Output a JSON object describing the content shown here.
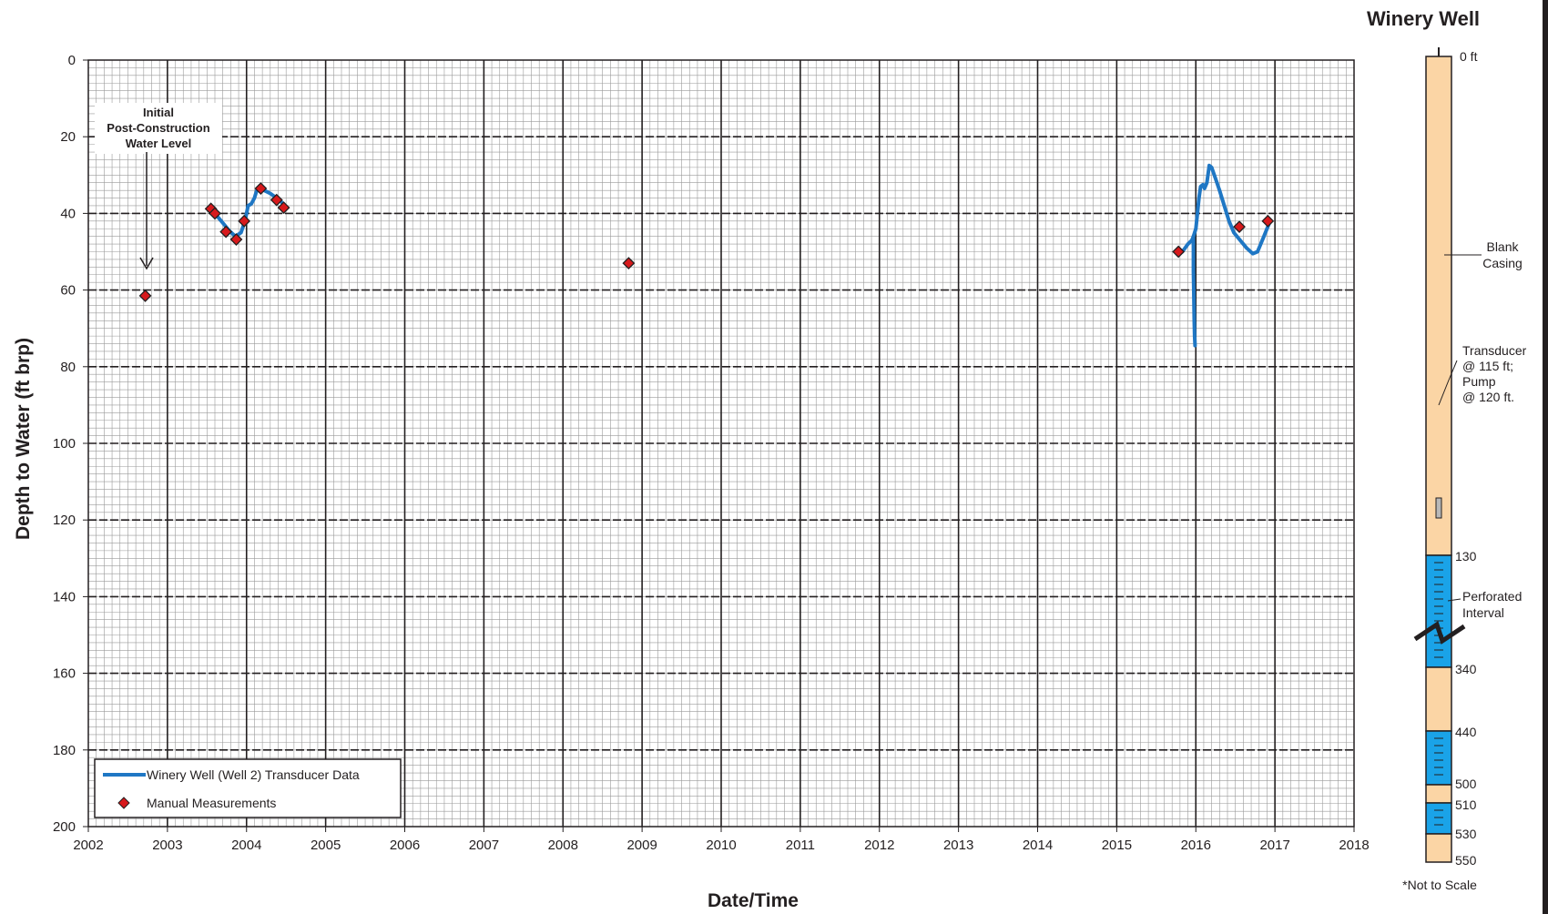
{
  "chart_data": {
    "type": "line",
    "xlabel": "Date/Time",
    "ylabel": "Depth to Water (ft brp)",
    "xlim": [
      2002,
      2018
    ],
    "ylim": [
      0,
      200
    ],
    "y_inverted": true,
    "x_ticks": [
      "2002",
      "2003",
      "2004",
      "2005",
      "2006",
      "2007",
      "2008",
      "2009",
      "2010",
      "2011",
      "2012",
      "2013",
      "2014",
      "2015",
      "2016",
      "2017",
      "2018"
    ],
    "y_ticks": [
      "0",
      "20",
      "40",
      "60",
      "80",
      "100",
      "120",
      "140",
      "160",
      "180",
      "200"
    ],
    "grid": true,
    "legend_position": "bottom-left",
    "series": [
      {
        "name": "Winery Well (Well 2)  Transducer Data",
        "color": "#1f77c4",
        "segments": [
          [
            [
              2003.62,
              40.5
            ],
            [
              2003.7,
              42.5
            ],
            [
              2003.78,
              44.5
            ],
            [
              2003.86,
              46
            ],
            [
              2003.93,
              45
            ],
            [
              2003.98,
              42
            ],
            [
              2004.02,
              38
            ],
            [
              2004.06,
              37.5
            ],
            [
              2004.1,
              36
            ],
            [
              2004.13,
              34
            ],
            [
              2004.17,
              33
            ],
            [
              2004.22,
              34
            ],
            [
              2004.3,
              34.8
            ],
            [
              2004.38,
              36
            ],
            [
              2004.44,
              37
            ],
            [
              2004.48,
              38
            ]
          ],
          [
            [
              2015.83,
              50
            ],
            [
              2015.9,
              48
            ],
            [
              2015.95,
              47
            ],
            [
              2015.97,
              46
            ],
            [
              2016.0,
              44
            ],
            [
              2016.02,
              40
            ],
            [
              2016.04,
              36
            ],
            [
              2016.06,
              33
            ],
            [
              2016.09,
              32.5
            ],
            [
              2016.11,
              33.5
            ],
            [
              2016.14,
              32
            ],
            [
              2016.17,
              27.5
            ],
            [
              2016.2,
              28
            ],
            [
              2016.25,
              31
            ],
            [
              2016.3,
              34
            ],
            [
              2016.36,
              38
            ],
            [
              2016.42,
              42
            ],
            [
              2016.48,
              45
            ],
            [
              2016.56,
              47
            ],
            [
              2016.64,
              49
            ],
            [
              2016.72,
              50.5
            ],
            [
              2016.78,
              50
            ],
            [
              2016.82,
              48
            ],
            [
              2016.86,
              46
            ],
            [
              2016.9,
              44
            ],
            [
              2016.94,
              42
            ]
          ],
          [
            [
              2015.97,
              46
            ],
            [
              2015.97,
              55
            ],
            [
              2015.975,
              62
            ],
            [
              2015.98,
              68
            ],
            [
              2015.985,
              72
            ],
            [
              2015.99,
              74.5
            ]
          ]
        ]
      }
    ],
    "markers": {
      "name": "Manual Measurements",
      "color": "#d7191c",
      "points": [
        [
          2002.72,
          61.5
        ],
        [
          2003.55,
          38.8
        ],
        [
          2003.6,
          40
        ],
        [
          2003.74,
          44.8
        ],
        [
          2003.87,
          46.8
        ],
        [
          2003.97,
          42
        ],
        [
          2004.18,
          33.5
        ],
        [
          2004.38,
          36.5
        ],
        [
          2004.47,
          38.5
        ],
        [
          2008.83,
          53
        ],
        [
          2015.78,
          50
        ],
        [
          2016.55,
          43.5
        ],
        [
          2016.91,
          42
        ]
      ]
    },
    "annotation": [
      "Initial",
      "Post-Construction",
      "Water Level"
    ]
  },
  "well_diagram": {
    "title": "Winery Well",
    "casing_color": "#fbd5a5",
    "perforation_color": "#1aa3e8",
    "depth_labels": [
      "0 ft",
      "130",
      "340",
      "440",
      "500",
      "510",
      "530",
      "550"
    ],
    "blank_casing_label": [
      "Blank",
      "Casing"
    ],
    "transducer_label": [
      "Transducer",
      "@ 115 ft;",
      "Pump",
      "@ 120 ft."
    ],
    "perforated_label": [
      "Perforated",
      "Interval"
    ],
    "note": "*Not to Scale"
  }
}
